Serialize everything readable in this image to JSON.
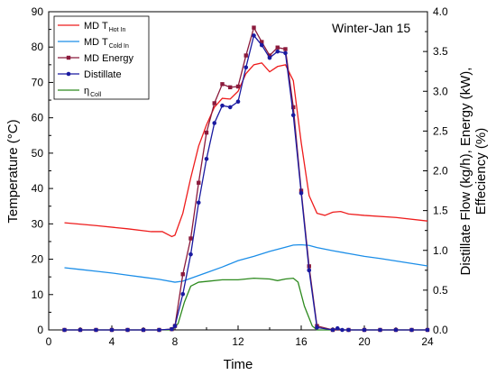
{
  "chart_data": {
    "type": "line",
    "annotation": "Winter-Jan 15",
    "xlabel": "Time",
    "ylabel_left": "Temperature (°C)",
    "ylabel_right_line1": "Distillate Flow (kg/h), Energy (kW),",
    "ylabel_right_line2": "Effeciency (%)",
    "xlim": [
      0,
      24
    ],
    "ylim_left": [
      0,
      90
    ],
    "ylim_right": [
      0,
      4.0
    ],
    "x_ticks": [
      0,
      4,
      8,
      12,
      16,
      20,
      24
    ],
    "y_ticks_left": [
      0,
      10,
      20,
      30,
      40,
      50,
      60,
      70,
      80,
      90
    ],
    "y_ticks_right": [
      0.0,
      0.5,
      1.0,
      1.5,
      2.0,
      2.5,
      3.0,
      3.5,
      4.0
    ],
    "grid": false,
    "legend_position": "top-left",
    "series": [
      {
        "name": "MD T",
        "name_sub": "Hot In",
        "axis": "left",
        "color": "#ee1c1c",
        "marker": "none",
        "points": [
          [
            1,
            30.3
          ],
          [
            3,
            29.5
          ],
          [
            5,
            28.6
          ],
          [
            6.5,
            27.8
          ],
          [
            7.2,
            27.8
          ],
          [
            7.8,
            26.4
          ],
          [
            8.0,
            26.8
          ],
          [
            8.5,
            33
          ],
          [
            9,
            43
          ],
          [
            9.5,
            52
          ],
          [
            10,
            58
          ],
          [
            10.5,
            63
          ],
          [
            11,
            65.5
          ],
          [
            11.5,
            65.3
          ],
          [
            12,
            67.5
          ],
          [
            12.5,
            72.5
          ],
          [
            13,
            75
          ],
          [
            13.5,
            75.5
          ],
          [
            14,
            73
          ],
          [
            14.5,
            74.5
          ],
          [
            15,
            75
          ],
          [
            15.5,
            70.5
          ],
          [
            16,
            53
          ],
          [
            16.5,
            38
          ],
          [
            17,
            33
          ],
          [
            17.5,
            32.4
          ],
          [
            18,
            33.3
          ],
          [
            18.5,
            33.5
          ],
          [
            19,
            32.8
          ],
          [
            20,
            32.4
          ],
          [
            22,
            31.8
          ],
          [
            24,
            30.8
          ]
        ]
      },
      {
        "name": "MD T",
        "name_sub": "Cold In",
        "axis": "left",
        "color": "#1c8ee8",
        "marker": "none",
        "points": [
          [
            1,
            17.6
          ],
          [
            2,
            17.1
          ],
          [
            3,
            16.6
          ],
          [
            4,
            16.1
          ],
          [
            5,
            15.5
          ],
          [
            6,
            14.9
          ],
          [
            7,
            14.3
          ],
          [
            8,
            13.5
          ],
          [
            8.5,
            13.8
          ],
          [
            9,
            14.6
          ],
          [
            10,
            16.2
          ],
          [
            11,
            17.8
          ],
          [
            12,
            19.6
          ],
          [
            13,
            20.8
          ],
          [
            14,
            22.2
          ],
          [
            15,
            23.4
          ],
          [
            15.5,
            24.0
          ],
          [
            16,
            24.1
          ],
          [
            16.5,
            23.9
          ],
          [
            17,
            23.3
          ],
          [
            18,
            22.4
          ],
          [
            19,
            21.6
          ],
          [
            20,
            20.8
          ],
          [
            21,
            20.2
          ],
          [
            22,
            19.5
          ],
          [
            23,
            18.8
          ],
          [
            24,
            18.1
          ]
        ]
      },
      {
        "name": "MD Energy",
        "axis": "right",
        "color": "#8b1a3c",
        "marker": "square",
        "points": [
          [
            1,
            0
          ],
          [
            2,
            0
          ],
          [
            3,
            0
          ],
          [
            4,
            0
          ],
          [
            5,
            0
          ],
          [
            6,
            0
          ],
          [
            7,
            0
          ],
          [
            7.8,
            0.01
          ],
          [
            8,
            0.05
          ],
          [
            8.5,
            0.7
          ],
          [
            9,
            1.15
          ],
          [
            9.5,
            1.85
          ],
          [
            10,
            2.48
          ],
          [
            10.5,
            2.85
          ],
          [
            11,
            3.09
          ],
          [
            11.5,
            3.05
          ],
          [
            12,
            3.06
          ],
          [
            12.5,
            3.45
          ],
          [
            13,
            3.8
          ],
          [
            13.5,
            3.62
          ],
          [
            14,
            3.45
          ],
          [
            14.5,
            3.55
          ],
          [
            15,
            3.53
          ],
          [
            15.5,
            2.8
          ],
          [
            16,
            1.75
          ],
          [
            16.5,
            0.8
          ],
          [
            17,
            0.05
          ],
          [
            18,
            0
          ],
          [
            19,
            0
          ],
          [
            20,
            0
          ],
          [
            21,
            0
          ],
          [
            22,
            0
          ],
          [
            23,
            0
          ],
          [
            24,
            0
          ]
        ]
      },
      {
        "name": "Distillate",
        "axis": "right",
        "color": "#1a1aa0",
        "marker": "circle",
        "points": [
          [
            1,
            0
          ],
          [
            2,
            0
          ],
          [
            3,
            0
          ],
          [
            4,
            0
          ],
          [
            5,
            0
          ],
          [
            6,
            0
          ],
          [
            7,
            0
          ],
          [
            7.8,
            0.01
          ],
          [
            8,
            0.05
          ],
          [
            8.5,
            0.45
          ],
          [
            9,
            0.95
          ],
          [
            9.5,
            1.6
          ],
          [
            10,
            2.15
          ],
          [
            10.5,
            2.6
          ],
          [
            11,
            2.82
          ],
          [
            11.5,
            2.8
          ],
          [
            12,
            2.87
          ],
          [
            12.5,
            3.3
          ],
          [
            13,
            3.7
          ],
          [
            13.5,
            3.58
          ],
          [
            14,
            3.42
          ],
          [
            14.5,
            3.5
          ],
          [
            15,
            3.48
          ],
          [
            15.5,
            2.7
          ],
          [
            16,
            1.72
          ],
          [
            16.5,
            0.75
          ],
          [
            17,
            0.03
          ],
          [
            18,
            0
          ],
          [
            18.3,
            0.02
          ],
          [
            18.6,
            0
          ],
          [
            19,
            0
          ],
          [
            20,
            0
          ],
          [
            21,
            0
          ],
          [
            22,
            0
          ],
          [
            23,
            0
          ],
          [
            24,
            0
          ]
        ]
      },
      {
        "name": "η",
        "name_sub": "Coll",
        "axis": "right",
        "color": "#2d8a1e",
        "marker": "none",
        "points": [
          [
            1,
            0
          ],
          [
            7.8,
            0
          ],
          [
            8.2,
            0.08
          ],
          [
            8.6,
            0.35
          ],
          [
            9,
            0.55
          ],
          [
            9.5,
            0.6
          ],
          [
            10,
            0.61
          ],
          [
            11,
            0.63
          ],
          [
            12,
            0.63
          ],
          [
            12.5,
            0.64
          ],
          [
            13,
            0.65
          ],
          [
            14,
            0.64
          ],
          [
            14.5,
            0.62
          ],
          [
            15,
            0.64
          ],
          [
            15.5,
            0.65
          ],
          [
            15.8,
            0.6
          ],
          [
            16.2,
            0.3
          ],
          [
            16.7,
            0.05
          ],
          [
            17,
            0
          ],
          [
            24,
            0
          ]
        ]
      }
    ]
  }
}
